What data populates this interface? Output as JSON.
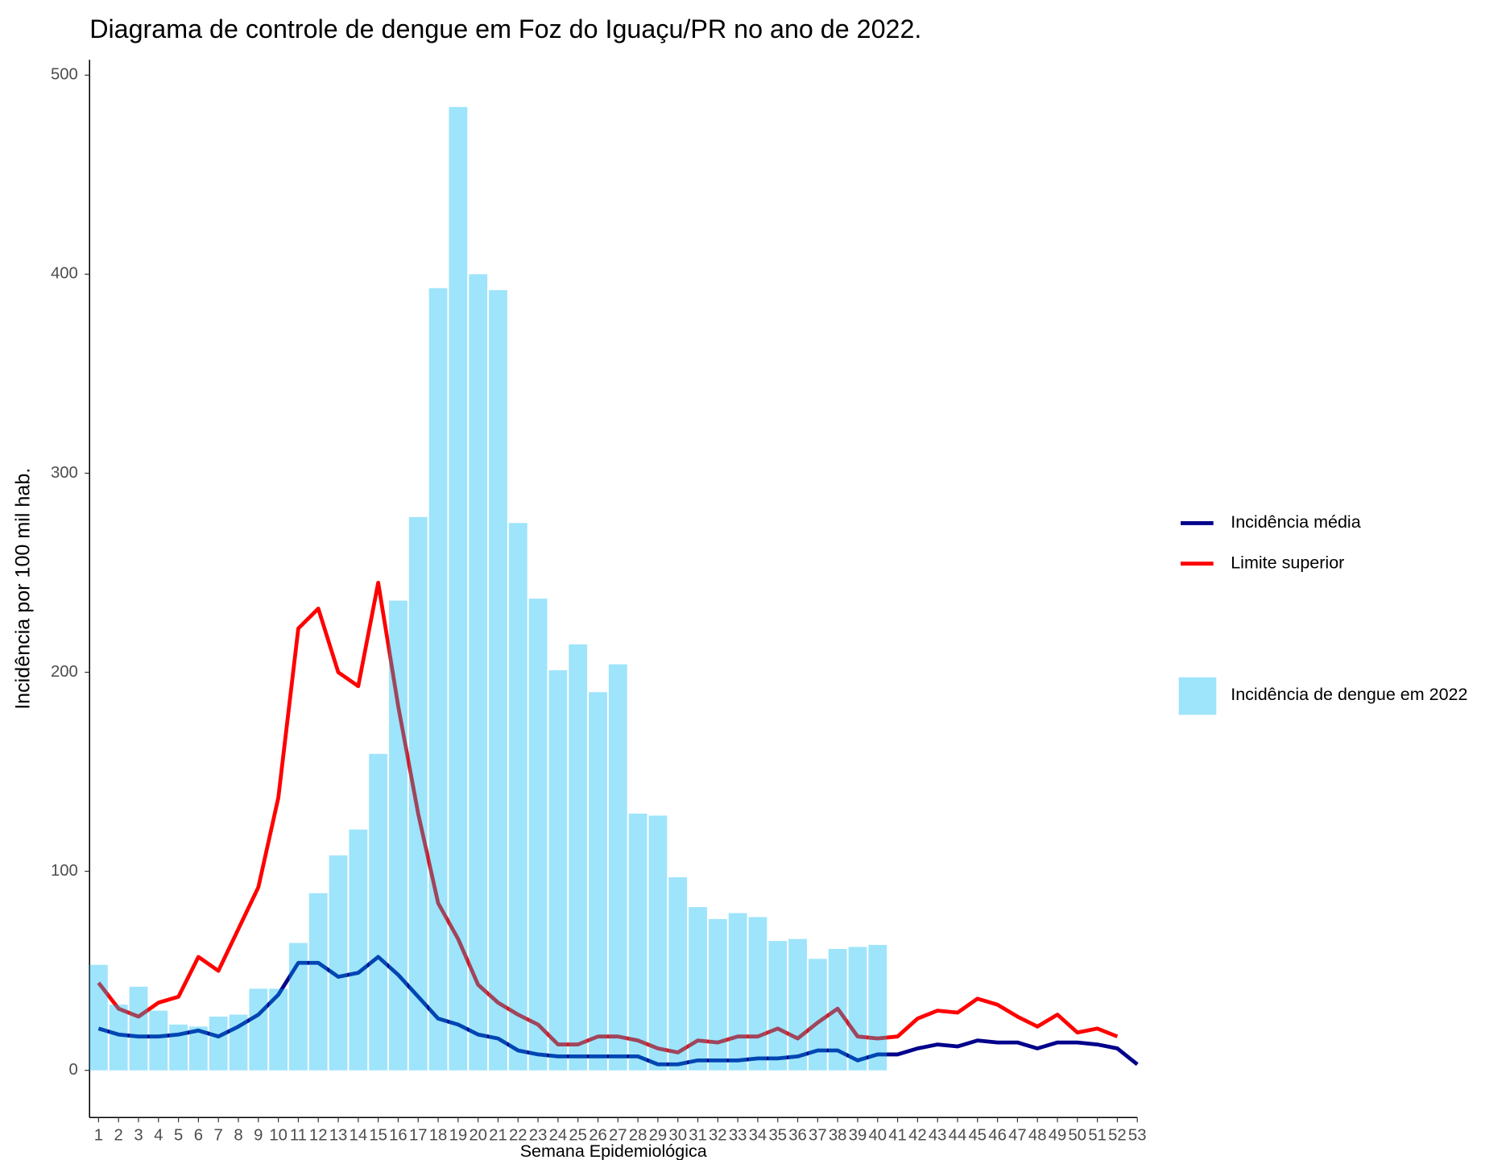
{
  "chart_data": {
    "type": "bar",
    "title": "Diagrama de controle de dengue em Foz do Iguaçu/PR no ano de 2022.",
    "xlabel": "Semana Epidemiológica",
    "ylabel": "Incidência por 100 mil hab.",
    "x": [
      1,
      2,
      3,
      4,
      5,
      6,
      7,
      8,
      9,
      10,
      11,
      12,
      13,
      14,
      15,
      16,
      17,
      18,
      19,
      20,
      21,
      22,
      23,
      24,
      25,
      26,
      27,
      28,
      29,
      30,
      31,
      32,
      33,
      34,
      35,
      36,
      37,
      38,
      39,
      40,
      41,
      42,
      43,
      44,
      45,
      46,
      47,
      48,
      49,
      50,
      51,
      52,
      53
    ],
    "xlim": [
      0.55,
      53
    ],
    "xticks": [
      1,
      2,
      3,
      4,
      5,
      6,
      7,
      8,
      9,
      10,
      11,
      12,
      13,
      14,
      15,
      16,
      17,
      18,
      19,
      20,
      21,
      22,
      23,
      24,
      25,
      26,
      27,
      28,
      29,
      30,
      31,
      32,
      33,
      34,
      35,
      36,
      37,
      38,
      39,
      40,
      41,
      42,
      43,
      44,
      45,
      46,
      47,
      48,
      49,
      50,
      51,
      52,
      53
    ],
    "ylim": [
      -23.7,
      507.7
    ],
    "yticks": [
      0,
      100,
      200,
      300,
      400,
      500
    ],
    "grid": false,
    "legend": "right",
    "series": [
      {
        "name": "Incidência média",
        "type": "line",
        "color": "#00008b",
        "values": [
          21,
          18,
          17,
          17,
          18,
          20,
          17,
          22,
          28,
          38,
          54,
          54,
          47,
          49,
          57,
          48,
          37,
          26,
          23,
          18,
          16,
          10,
          8,
          7,
          7,
          7,
          7,
          7,
          3,
          3,
          5,
          5,
          5,
          6,
          6,
          7,
          10,
          10,
          5,
          8,
          8,
          11,
          13,
          12,
          15,
          14,
          14,
          11,
          14,
          14,
          13,
          11,
          3
        ]
      },
      {
        "name": "Limite superior",
        "type": "line",
        "color": "#ff0000",
        "values": [
          44,
          31,
          27,
          34,
          37,
          57,
          50,
          71,
          92,
          137,
          222,
          232,
          200,
          193,
          245,
          183,
          129,
          84,
          66,
          43,
          34,
          28,
          23,
          13,
          13,
          17,
          17,
          15,
          11,
          9,
          15,
          14,
          17,
          17,
          21,
          16,
          24,
          31,
          17,
          16,
          17,
          26,
          30,
          29,
          36,
          33,
          27,
          22,
          28,
          19,
          21,
          17,
          null
        ]
      },
      {
        "name": "Incidência de dengue em 2022",
        "type": "bar",
        "color": "#00b8f5",
        "opacity": 0.38,
        "values": [
          53,
          33,
          42,
          30,
          23,
          22,
          27,
          28,
          41,
          41,
          64,
          89,
          108,
          121,
          159,
          236,
          278,
          393,
          484,
          400,
          392,
          275,
          237,
          201,
          214,
          190,
          204,
          129,
          128,
          97,
          82,
          76,
          79,
          77,
          65,
          66,
          56,
          61,
          62,
          63,
          null,
          null,
          null,
          null,
          null,
          null,
          null,
          null,
          null,
          null,
          null,
          null,
          null
        ]
      }
    ]
  }
}
